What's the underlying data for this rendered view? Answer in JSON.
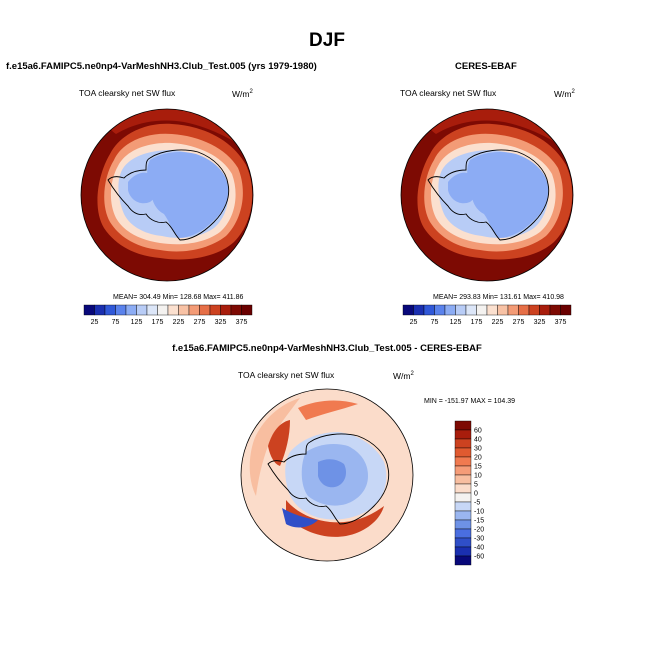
{
  "figure": {
    "title": "DJF",
    "panels": [
      {
        "id": "model",
        "heading": "f.e15a6.FAMIPC5.ne0np4-VarMeshNH3.Club_Test.005 (yrs 1979-1980)",
        "subtitle": "TOA clearsky net SW flux",
        "units": "W/m",
        "units_exp": "2",
        "stats": "MEAN= 304.49  Min= 128.68  Max= 411.86"
      },
      {
        "id": "obs",
        "heading": "CERES-EBAF",
        "subtitle": "TOA clearsky net SW flux",
        "units": "W/m",
        "units_exp": "2",
        "stats": "MEAN= 293.83  Min= 131.61  Max= 410.98"
      },
      {
        "id": "diff",
        "heading": "f.e15a6.FAMIPC5.ne0np4-VarMeshNH3.Club_Test.005 - CERES-EBAF",
        "subtitle": "TOA clearsky net SW flux",
        "units": "W/m",
        "units_exp": "2",
        "stats": "MIN = -151.97  MAX = 104.39"
      }
    ]
  },
  "chart_data": [
    {
      "type": "heatmap",
      "projection": "south-polar-stereographic",
      "title": "TOA clearsky net SW flux",
      "colorbar": {
        "orientation": "horizontal",
        "levels": [
          25,
          50,
          75,
          100,
          125,
          150,
          175,
          200,
          225,
          250,
          275,
          300,
          325,
          350,
          375
        ],
        "tick_labels": [
          "25",
          "75",
          "125",
          "175",
          "225",
          "275",
          "325",
          "375"
        ],
        "colors": [
          "#08087a",
          "#1a2fb0",
          "#3058d8",
          "#5a82ec",
          "#8cacf4",
          "#b8ccf6",
          "#dce6f8",
          "#f4f2f0",
          "#fbe0cf",
          "#f8c2a5",
          "#f39b76",
          "#e66f47",
          "#cc4220",
          "#a81d0c",
          "#7d0a03",
          "#6a0000"
        ]
      },
      "stats": {
        "mean": 304.49,
        "min": 128.68,
        "max": 411.86
      }
    },
    {
      "type": "heatmap",
      "projection": "south-polar-stereographic",
      "title": "TOA clearsky net SW flux",
      "colorbar": {
        "orientation": "horizontal",
        "levels": [
          25,
          50,
          75,
          100,
          125,
          150,
          175,
          200,
          225,
          250,
          275,
          300,
          325,
          350,
          375
        ],
        "tick_labels": [
          "25",
          "75",
          "125",
          "175",
          "225",
          "275",
          "325",
          "375"
        ],
        "colors": [
          "#08087a",
          "#1a2fb0",
          "#3058d8",
          "#5a82ec",
          "#8cacf4",
          "#b8ccf6",
          "#dce6f8",
          "#f4f2f0",
          "#fbe0cf",
          "#f8c2a5",
          "#f39b76",
          "#e66f47",
          "#cc4220",
          "#a81d0c",
          "#7d0a03",
          "#6a0000"
        ]
      },
      "stats": {
        "mean": 293.83,
        "min": 131.61,
        "max": 410.98
      }
    },
    {
      "type": "heatmap",
      "projection": "south-polar-stereographic",
      "title": "TOA clearsky net SW flux",
      "colorbar": {
        "orientation": "vertical",
        "levels": [
          -60,
          -40,
          -30,
          -20,
          -15,
          -10,
          -5,
          0,
          5,
          10,
          15,
          20,
          30,
          40,
          60
        ],
        "tick_labels": [
          "60",
          "40",
          "30",
          "20",
          "15",
          "10",
          "5",
          "0",
          "-5",
          "-10",
          "-15",
          "-20",
          "-30",
          "-40",
          "-60"
        ],
        "colors": [
          "#7d0a03",
          "#a81d0c",
          "#cc4220",
          "#e05a30",
          "#f07a50",
          "#f59c78",
          "#f8bea0",
          "#fbdcca",
          "#f4f2f0",
          "#c7d7f6",
          "#9ab6f0",
          "#6e92e6",
          "#4a6ee0",
          "#2f4fc8",
          "#1a2fb0",
          "#08087a"
        ]
      },
      "stats": {
        "min": -151.97,
        "max": 104.39
      }
    }
  ]
}
